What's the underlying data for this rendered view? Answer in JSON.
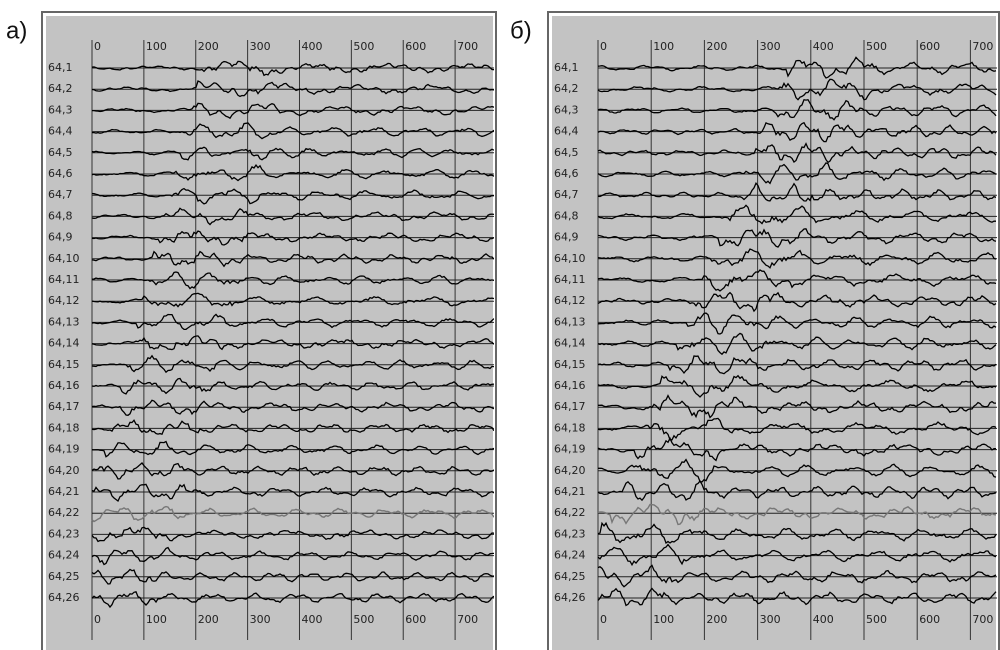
{
  "chart_data": [
    {
      "type": "seismogram",
      "panel_label": "а)",
      "categories": [
        "64,1",
        "64,2",
        "64,3",
        "64,4",
        "64,5",
        "64,6",
        "64,7",
        "64,8",
        "64,9",
        "64,10",
        "64,11",
        "64,12",
        "64,13",
        "64,14",
        "64,15",
        "64,16",
        "64,17",
        "64,18",
        "64,19",
        "64,20",
        "64,21",
        "64,22",
        "64,23",
        "64,24",
        "64,25",
        "64,26"
      ],
      "xlim": [
        0,
        775
      ],
      "xticks": [
        0,
        100,
        200,
        300,
        400,
        500,
        600,
        700
      ],
      "grid": true,
      "highlight": "64,22"
    },
    {
      "type": "seismogram",
      "panel_label": "б)",
      "categories": [
        "64,1",
        "64,2",
        "64,3",
        "64,4",
        "64,5",
        "64,6",
        "64,7",
        "64,8",
        "64,9",
        "64,10",
        "64,11",
        "64,12",
        "64,13",
        "64,14",
        "64,15",
        "64,16",
        "64,17",
        "64,18",
        "64,19",
        "64,20",
        "64,21",
        "64,22",
        "64,23",
        "64,24",
        "64,25",
        "64,26"
      ],
      "xlim": [
        0,
        750
      ],
      "xticks": [
        0,
        100,
        200,
        300,
        400,
        500,
        600,
        700
      ],
      "grid": true,
      "highlight": "64,22"
    }
  ]
}
